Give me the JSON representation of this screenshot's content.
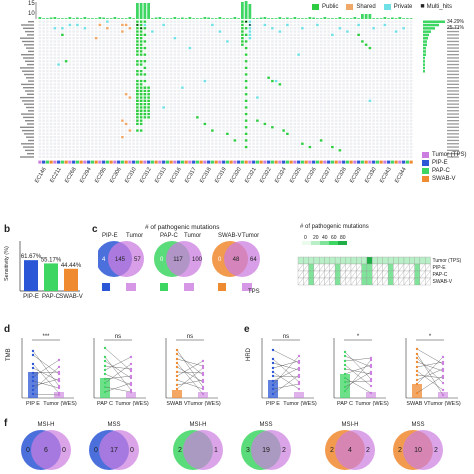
{
  "panel_a": {
    "legend_top": [
      {
        "label": "Public",
        "color": "#2ecc40"
      },
      {
        "label": "Shared",
        "color": "#f0a868"
      },
      {
        "label": "Private",
        "color": "#6fe0e6"
      },
      {
        "label": "Multi_hits",
        "color": "#222222"
      }
    ],
    "legend_bottom": [
      {
        "label": "Tumor (TPS)",
        "color": "#cc7ee0"
      },
      {
        "label": "PIP-E",
        "color": "#2b57d6"
      },
      {
        "label": "PAP-C",
        "color": "#3ed663"
      },
      {
        "label": "SWAB-V",
        "color": "#f08a30"
      }
    ],
    "ytick_labels": [
      "10",
      "15"
    ],
    "sample_labels": [
      "EC146",
      "EC211",
      "EC268",
      "EC294",
      "EC295",
      "EC306",
      "EC310",
      "EC312",
      "EC313",
      "EC316",
      "EC317",
      "EC318",
      "EC319",
      "EC320",
      "EC321",
      "EC322",
      "EC324",
      "EC325",
      "EC326",
      "EC327",
      "EC328",
      "EC329",
      "EC330",
      "EC343",
      "EC344"
    ],
    "pct_top": "34.29%",
    "pct_second": "25.71%"
  },
  "panel_b": {
    "label": "b",
    "ylabel": "Sensitivity (%)",
    "chart_data": {
      "type": "bar",
      "categories": [
        "PIP-E",
        "PAP-C",
        "SWAB-V"
      ],
      "values": [
        61.67,
        55.17,
        44.44
      ],
      "value_labels": [
        "61.67%",
        "55.17%",
        "44.44%"
      ],
      "colors": [
        "#2b57d6",
        "#3ed663",
        "#f08a30"
      ],
      "ylim": [
        0,
        100
      ]
    }
  },
  "panel_c": {
    "label": "c",
    "title": "# of pathogenic mutations",
    "venns": [
      {
        "left_label": "PIP-E",
        "right_label": "Tumor",
        "values": [
          "4",
          "145",
          "57"
        ]
      },
      {
        "left_label": "PAP-C",
        "right_label": "Tumor",
        "values": [
          "0",
          "117",
          "100"
        ]
      },
      {
        "left_label": "SWAB-V",
        "right_label": "Tumor",
        "values": [
          "0",
          "48",
          "64"
        ]
      }
    ],
    "tps_label": "TPS",
    "heatmap_title": "# of pathogenic mutations",
    "heatmap_scale": [
      "0",
      "20",
      "40",
      "60",
      "80"
    ],
    "heatmap_rows": [
      "Tumor (TPS)",
      "PIP-E",
      "PAP-C",
      "SWAB-V"
    ]
  },
  "panel_d": {
    "label": "d",
    "ylabel": "TMB",
    "sig": [
      "***",
      "ns",
      "ns"
    ],
    "groups": [
      {
        "left": "PIP E",
        "right": "Tumor (WES)"
      },
      {
        "left": "PAP C",
        "right": "Tumor (WES)"
      },
      {
        "left": "SWAB V",
        "right": "Tumor (WES)"
      }
    ]
  },
  "panel_e": {
    "label": "e",
    "ylabel": "HRD",
    "sig": [
      "ns",
      "*",
      "*"
    ],
    "groups": [
      {
        "left": "PIP E",
        "right": "Tumor (WES)"
      },
      {
        "left": "PAP C",
        "right": "Tumor (WES)"
      },
      {
        "left": "SWAB V",
        "right": "Tumor (WES)"
      }
    ]
  },
  "panel_f": {
    "label": "f",
    "venns": [
      {
        "title": "MSI-H",
        "values": [
          "0",
          "6",
          "0"
        ]
      },
      {
        "title": "MSS",
        "values": [
          "0",
          "17",
          "0"
        ]
      },
      {
        "title": "MSI-H",
        "values": [
          "2",
          "",
          "1"
        ]
      },
      {
        "title": "MSS",
        "values": [
          "3",
          "19",
          "2"
        ]
      },
      {
        "title": "MSI-H",
        "values": [
          "2",
          "4",
          "2"
        ]
      },
      {
        "title": "MSS",
        "values": [
          "2",
          "10",
          "2"
        ]
      }
    ]
  }
}
